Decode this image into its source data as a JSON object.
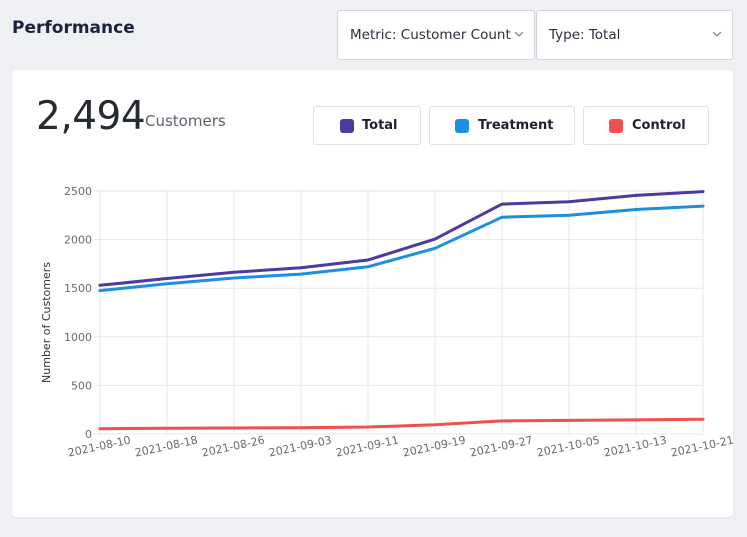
{
  "header": {
    "title": "Performance"
  },
  "filters": {
    "metric": "Metric: Customer Count",
    "type": "Type: Total"
  },
  "summary": {
    "value": "2,494",
    "unit": "Customers"
  },
  "legend": [
    {
      "label": "Total",
      "color": "#4c3a9e"
    },
    {
      "label": "Treatment",
      "color": "#1b8fe0"
    },
    {
      "label": "Control",
      "color": "#f0504f"
    }
  ],
  "colors": {
    "page_background": "#eff0f3",
    "card_background": "#ffffff",
    "total": "#4c3a9e",
    "treatment": "#1b8fe0",
    "control": "#f0504f"
  },
  "chart_data": {
    "type": "line",
    "title": "",
    "xlabel": "",
    "ylabel": "Number of Customers",
    "x": [
      "2021-08-10",
      "2021-08-18",
      "2021-08-26",
      "2021-09-03",
      "2021-09-11",
      "2021-09-19",
      "2021-09-27",
      "2021-10-05",
      "2021-10-13",
      "2021-10-21"
    ],
    "ylim": [
      0,
      2500
    ],
    "yticks": [
      0,
      500,
      1000,
      1500,
      2000,
      2500
    ],
    "grid": true,
    "legend_position": "top-right",
    "series": [
      {
        "name": "Total",
        "color": "#4c3a9e",
        "values": [
          1530,
          1600,
          1665,
          1710,
          1790,
          2005,
          2365,
          2390,
          2455,
          2494
        ]
      },
      {
        "name": "Treatment",
        "color": "#1b8fe0",
        "values": [
          1475,
          1545,
          1605,
          1645,
          1720,
          1910,
          2230,
          2250,
          2310,
          2345
        ]
      },
      {
        "name": "Control",
        "color": "#f0504f",
        "values": [
          55,
          60,
          62,
          65,
          72,
          95,
          135,
          140,
          145,
          152
        ]
      }
    ]
  }
}
